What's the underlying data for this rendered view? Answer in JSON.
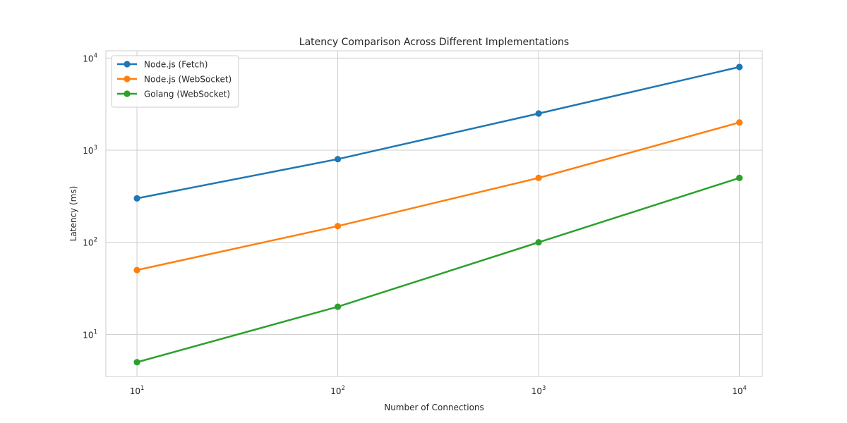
{
  "chart_data": {
    "type": "line",
    "title": "Latency Comparison Across Different Implementations",
    "xlabel": "Number of Connections",
    "ylabel": "Latency (ms)",
    "x_scale": "log",
    "y_scale": "log",
    "x": [
      10,
      100,
      1000,
      10000
    ],
    "x_ticks": [
      {
        "base": "10",
        "exp": "1"
      },
      {
        "base": "10",
        "exp": "2"
      },
      {
        "base": "10",
        "exp": "3"
      },
      {
        "base": "10",
        "exp": "4"
      }
    ],
    "y_ticks": [
      {
        "base": "10",
        "exp": "1"
      },
      {
        "base": "10",
        "exp": "2"
      },
      {
        "base": "10",
        "exp": "3"
      },
      {
        "base": "10",
        "exp": "4"
      }
    ],
    "xlim": [
      7,
      13000
    ],
    "ylim": [
      3.5,
      12000
    ],
    "grid": true,
    "legend_position": "top-left",
    "series": [
      {
        "name": "Node.js (Fetch)",
        "color": "#1f77b4",
        "values": [
          300,
          800,
          2500,
          8000
        ]
      },
      {
        "name": "Node.js (WebSocket)",
        "color": "#ff7f0e",
        "values": [
          50,
          150,
          500,
          2000
        ]
      },
      {
        "name": "Golang (WebSocket)",
        "color": "#2ca02c",
        "values": [
          5,
          20,
          100,
          500
        ]
      }
    ]
  }
}
